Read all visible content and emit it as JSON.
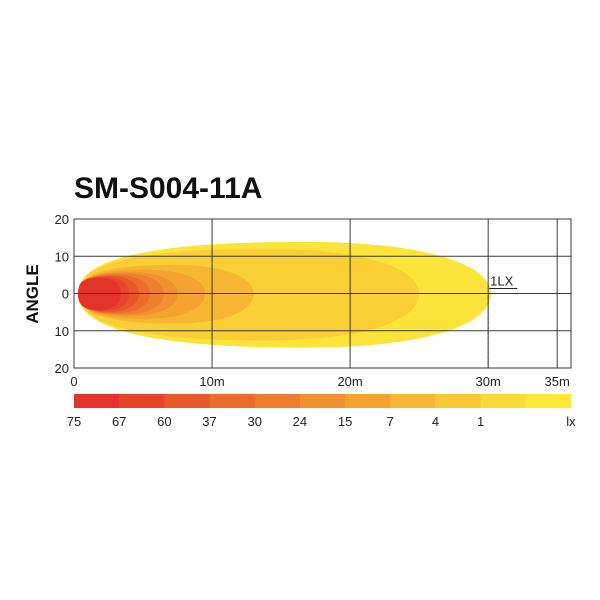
{
  "chart_data": {
    "type": "heatmap",
    "title": "SM-S004-11A",
    "ylabel": "ANGLE",
    "xlabel": "",
    "xlim": [
      0,
      36
    ],
    "ylim": [
      -20,
      20
    ],
    "x_ticks": [
      {
        "value": 0,
        "label": "0"
      },
      {
        "value": 10,
        "label": "10m"
      },
      {
        "value": 20,
        "label": "20m"
      },
      {
        "value": 30,
        "label": "30m"
      },
      {
        "value": 35,
        "label": "35m"
      }
    ],
    "y_ticks": [
      {
        "value": 20,
        "label": "20"
      },
      {
        "value": 10,
        "label": "10"
      },
      {
        "value": 0,
        "label": "0"
      },
      {
        "value": -10,
        "label": "10"
      },
      {
        "value": -20,
        "label": "20"
      }
    ],
    "annotation": {
      "label": "1LX",
      "x": 30
    },
    "legend_unit": "lx",
    "legend": [
      {
        "label": "75",
        "color": "#e3342b"
      },
      {
        "label": "67",
        "color": "#e6452a"
      },
      {
        "label": "60",
        "color": "#e85a2b"
      },
      {
        "label": "37",
        "color": "#eb6c2d"
      },
      {
        "label": "30",
        "color": "#ee7d2e"
      },
      {
        "label": "24",
        "color": "#f1902f"
      },
      {
        "label": "15",
        "color": "#f4a331"
      },
      {
        "label": "7",
        "color": "#f7b633"
      },
      {
        "label": "4",
        "color": "#f9c834"
      },
      {
        "label": "1",
        "color": "#fbd936"
      },
      {
        "label": "",
        "color": "#fde93a"
      }
    ],
    "contours": [
      {
        "lux": 1,
        "reach": 30.2,
        "color": "#fbe43a"
      },
      {
        "lux": 4,
        "reach": 25,
        "color": "#f9cf35"
      },
      {
        "lux": 7,
        "reach": 13,
        "color": "#f6b533"
      },
      {
        "lux": 15,
        "reach": 9.5,
        "color": "#f4a331"
      },
      {
        "lux": 24,
        "reach": 7.5,
        "color": "#f19130"
      },
      {
        "lux": 30,
        "reach": 6.5,
        "color": "#ee7f2e"
      },
      {
        "lux": 37,
        "reach": 5.5,
        "color": "#eb6c2d"
      },
      {
        "lux": 60,
        "reach": 4.7,
        "color": "#e7572a"
      },
      {
        "lux": 67,
        "reach": 4.0,
        "color": "#e5462a"
      },
      {
        "lux": 75,
        "reach": 3.4,
        "color": "#e3342b"
      }
    ]
  }
}
